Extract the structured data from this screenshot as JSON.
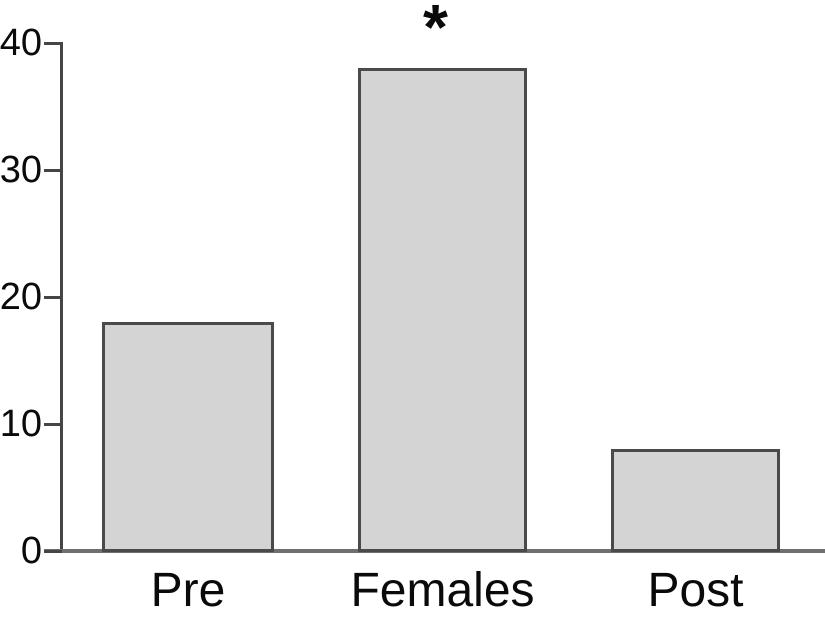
{
  "chart_data": {
    "type": "bar",
    "title": "",
    "categories": [
      "Pre",
      "Females",
      "Post"
    ],
    "values": [
      18,
      38,
      8
    ],
    "xlabel": "",
    "ylabel": "",
    "ylim": [
      0,
      40
    ],
    "yticks": [
      0,
      10,
      20,
      30,
      40
    ],
    "grid": "off",
    "legend": "none",
    "annotations": [
      {
        "text": "*",
        "category": "Females",
        "position": "above-bar"
      }
    ],
    "colors": {
      "bar_fill": "#d4d4d4",
      "bar_border": "#4a4a4a",
      "x_axis": "#6f6f6f",
      "y_axis": "#454545",
      "text": "#0a0a0a",
      "background": "#ffffff"
    }
  }
}
